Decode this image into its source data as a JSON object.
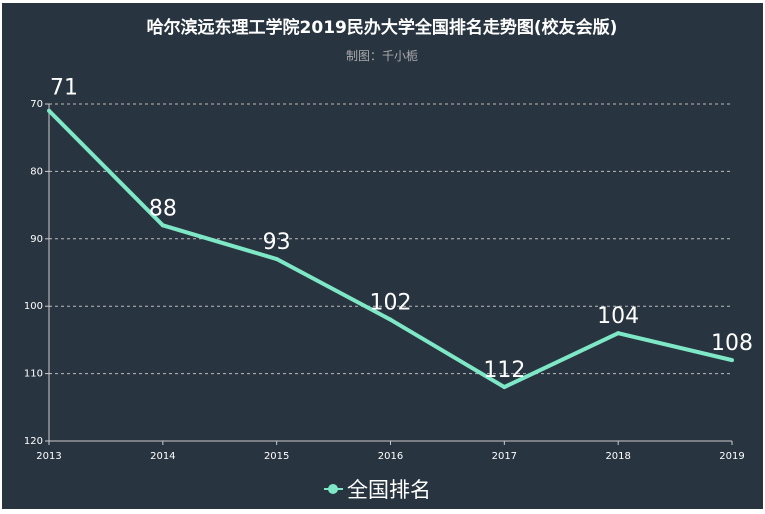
{
  "chart_data": {
    "type": "line",
    "title": "哈尔滨远东理工学院2019民办大学全国排名走势图(校友会版)",
    "subtitle": "制图：千小栀",
    "categories": [
      "2013",
      "2014",
      "2015",
      "2016",
      "2017",
      "2018",
      "2019"
    ],
    "series": [
      {
        "name": "全国排名",
        "values": [
          71,
          88,
          93,
          102,
          112,
          104,
          108
        ]
      }
    ],
    "y_ticks": [
      70,
      80,
      90,
      100,
      110,
      120
    ],
    "ylim": [
      70,
      120
    ],
    "y_inverted": true,
    "grid": "horizontal dashed",
    "legend": "bottom-center",
    "colors": {
      "background": "#283440",
      "line": "#7ee8c6",
      "text": "#ffffff",
      "subtitle": "#aaaaaa",
      "axis": "#cccccc"
    }
  }
}
